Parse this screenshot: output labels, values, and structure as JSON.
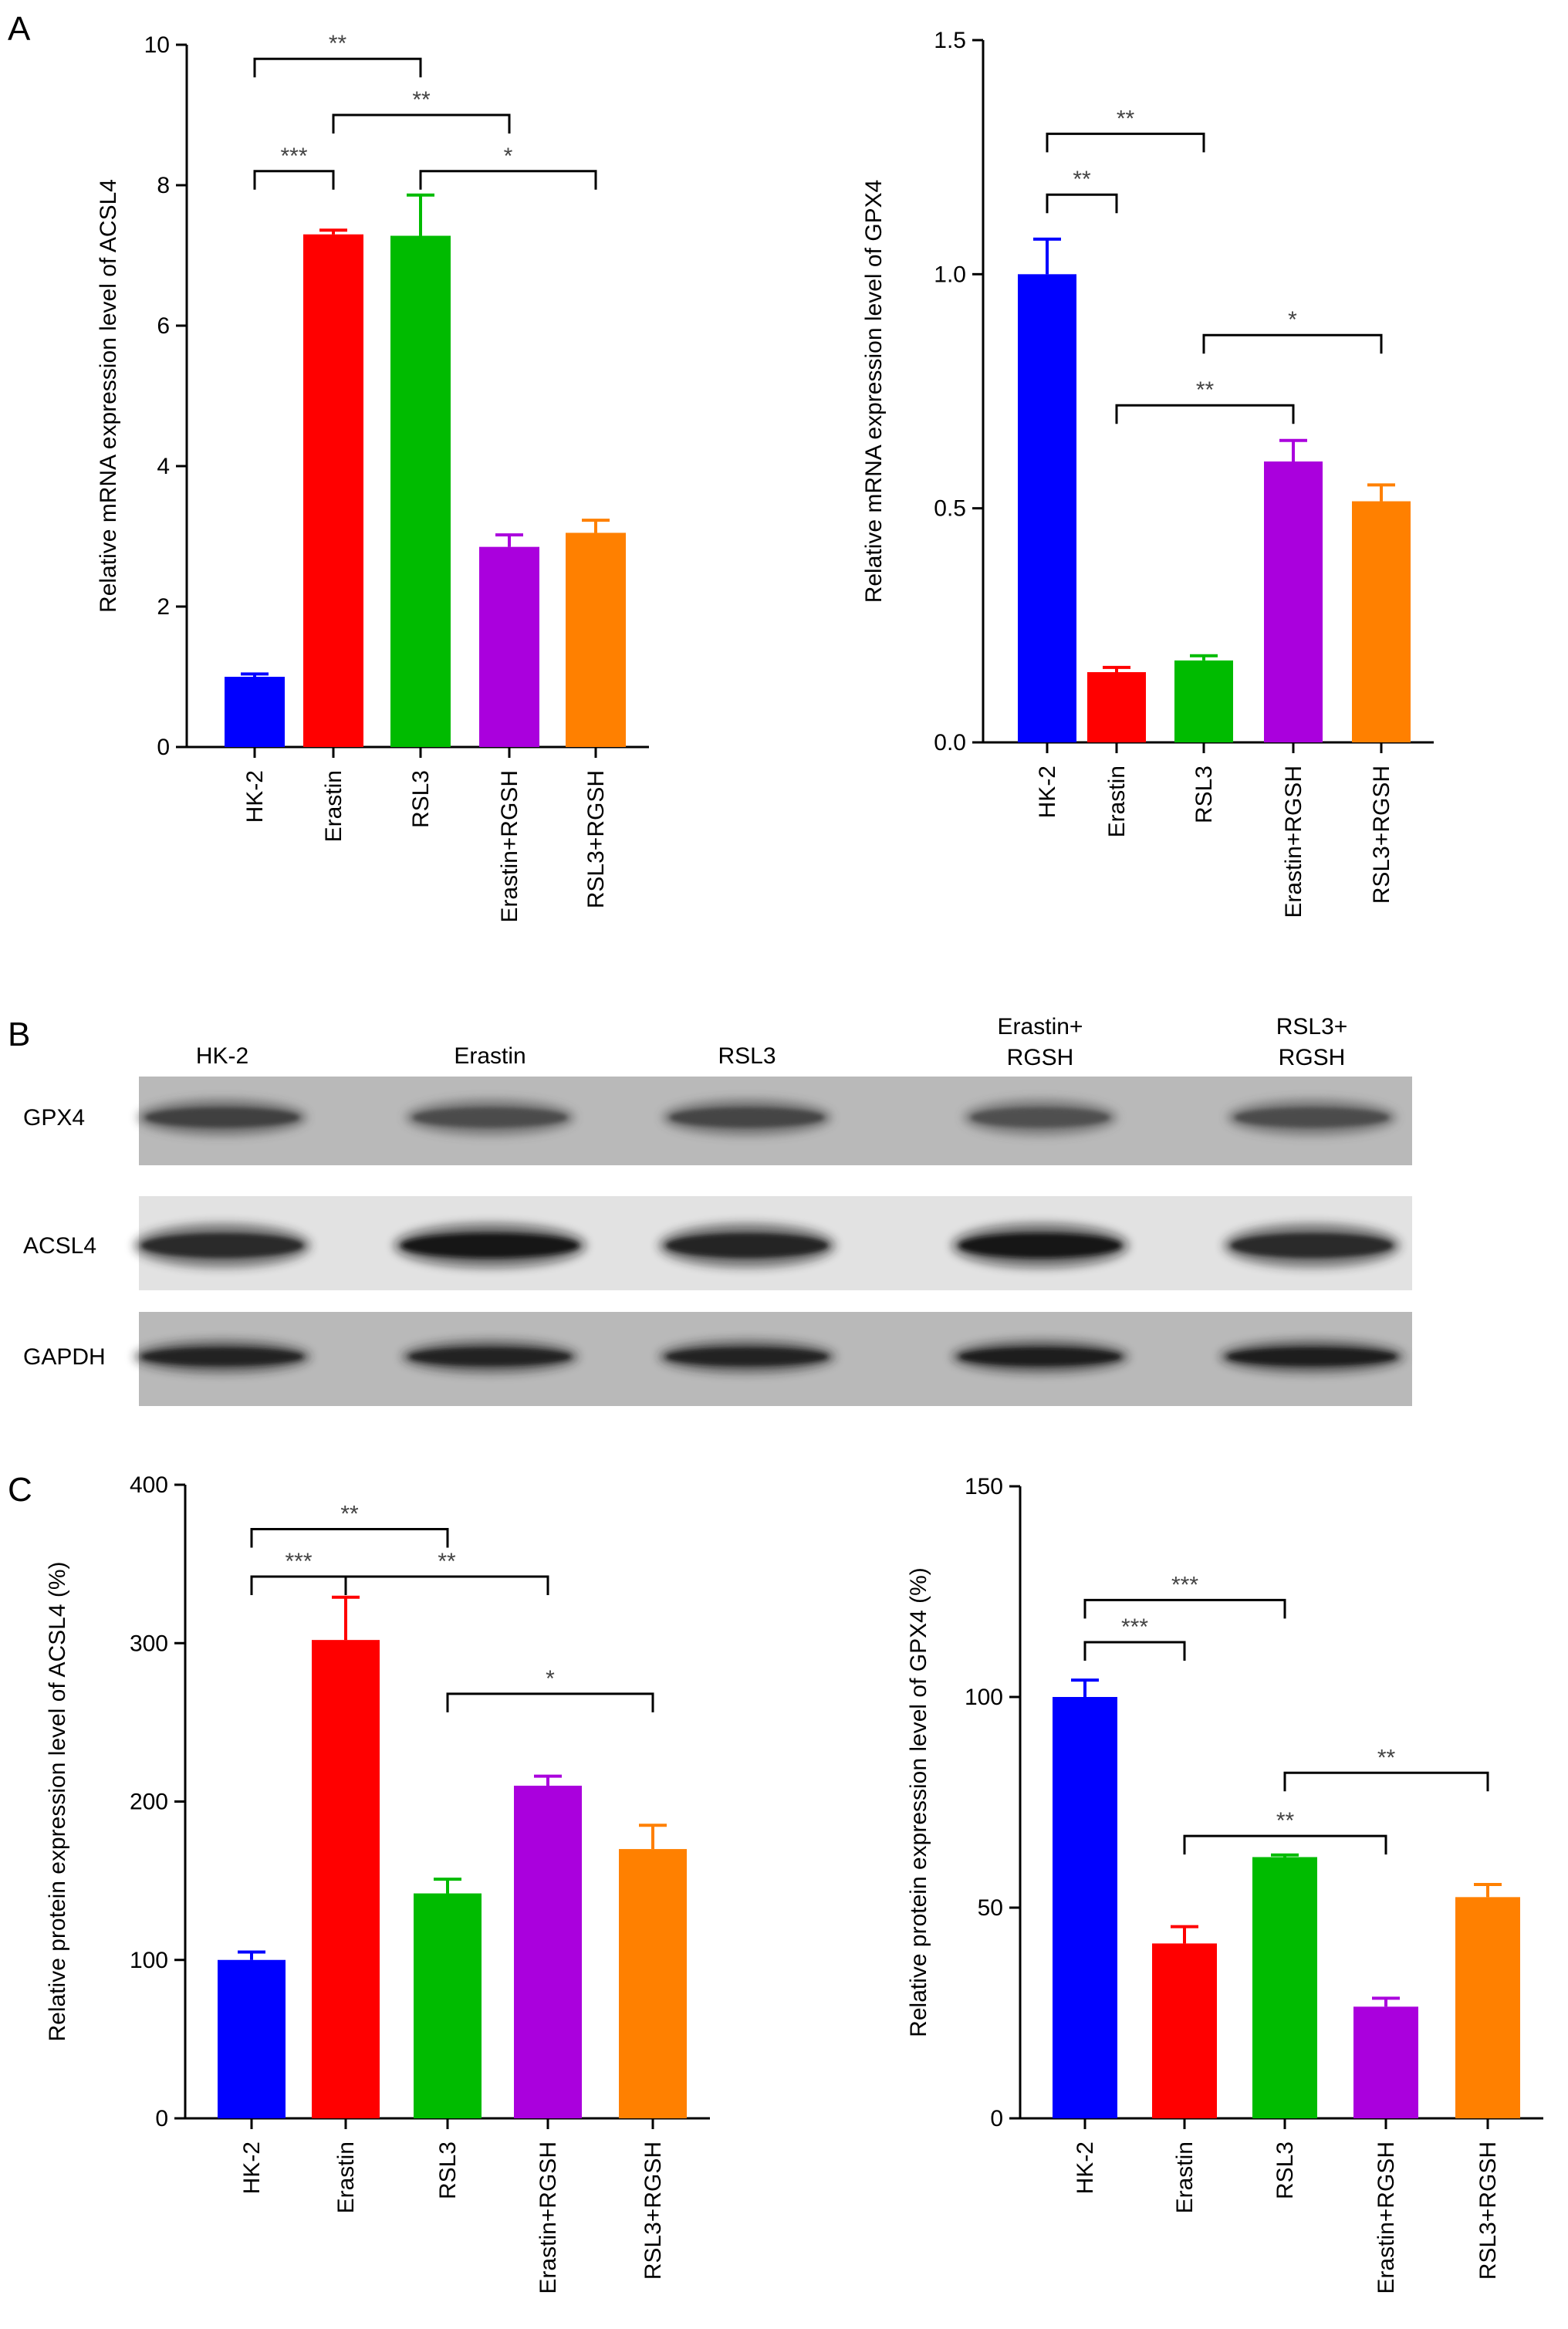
{
  "panels": {
    "A": "A",
    "B": "B",
    "C": "C"
  },
  "chart_data": [
    {
      "id": "A1",
      "type": "bar",
      "categories": [
        "HK-2",
        "Erastin",
        "RSL3",
        "Erastin+RGSH",
        "RSL3+RGSH"
      ],
      "values": [
        1.0,
        7.3,
        7.28,
        2.85,
        3.05
      ],
      "errors": [
        0.04,
        0.06,
        0.58,
        0.17,
        0.18
      ],
      "colors": [
        "#0000ff",
        "#ff0000",
        "#00bb00",
        "#aa00dd",
        "#ff8000"
      ],
      "ylabel": "Relative mRNA expression level of ACSL4",
      "ylim": [
        0,
        10
      ],
      "yticks": [
        0,
        2,
        4,
        6,
        8,
        10
      ],
      "significance": [
        {
          "from": 0,
          "to": 2,
          "label": "**",
          "level": 9.8
        },
        {
          "from": 1,
          "to": 3,
          "label": "**",
          "level": 9.0
        },
        {
          "from": 0,
          "to": 1,
          "label": "***",
          "level": 8.2
        },
        {
          "from": 2,
          "to": 4,
          "label": "*",
          "level": 8.2
        }
      ]
    },
    {
      "id": "A2",
      "type": "bar",
      "categories": [
        "HK-2",
        "Erastin",
        "RSL3",
        "Erastin+RGSH",
        "RSL3+RGSH"
      ],
      "values": [
        1.0,
        0.15,
        0.175,
        0.6,
        0.515
      ],
      "errors": [
        0.075,
        0.01,
        0.01,
        0.045,
        0.035
      ],
      "colors": [
        "#0000ff",
        "#ff0000",
        "#00bb00",
        "#aa00dd",
        "#ff8000"
      ],
      "ylabel": "Relative mRNA expression level of GPX4",
      "ylim": [
        0,
        1.5
      ],
      "yticks": [
        "0.0",
        "0.5",
        "1.0",
        "1.5"
      ],
      "significance": [
        {
          "from": 0,
          "to": 2,
          "label": "**",
          "level": 1.3
        },
        {
          "from": 0,
          "to": 1,
          "label": "**",
          "level": 1.17
        },
        {
          "from": 2,
          "to": 4,
          "label": "*",
          "level": 0.87
        },
        {
          "from": 1,
          "to": 3,
          "label": "**",
          "level": 0.72
        }
      ]
    },
    {
      "id": "C1",
      "type": "bar",
      "categories": [
        "HK-2",
        "Erastin",
        "RSL3",
        "Erastin+RGSH",
        "RSL3+RGSH"
      ],
      "values": [
        100,
        302,
        142,
        210,
        170
      ],
      "errors": [
        5,
        27,
        9,
        6,
        15
      ],
      "colors": [
        "#0000ff",
        "#ff0000",
        "#00bb00",
        "#aa00dd",
        "#ff8000"
      ],
      "ylabel": "Relative protein expression level of ACSL4 (%)",
      "ylim": [
        0,
        400
      ],
      "yticks": [
        0,
        100,
        200,
        300,
        400
      ],
      "significance": [
        {
          "from": 0,
          "to": 2,
          "label": "**",
          "level": 372
        },
        {
          "from": 0,
          "to": 1,
          "label": "***",
          "level": 342
        },
        {
          "from": 1,
          "to": 3,
          "label": "**",
          "level": 342,
          "fromMid": true
        },
        {
          "from": 2,
          "to": 4,
          "label": "*",
          "level": 268
        }
      ]
    },
    {
      "id": "C2",
      "type": "bar",
      "categories": [
        "HK-2",
        "Erastin",
        "RSL3",
        "Erastin+RGSH",
        "RSL3+RGSH"
      ],
      "values": [
        100,
        41.5,
        62,
        26.5,
        52.5
      ],
      "errors": [
        4,
        4,
        0.5,
        2,
        3
      ],
      "colors": [
        "#0000ff",
        "#ff0000",
        "#00bb00",
        "#aa00dd",
        "#ff8000"
      ],
      "ylabel": "Relative protein expression level of GPX4 (%)",
      "ylim": [
        0,
        150
      ],
      "yticks": [
        0,
        50,
        100,
        150
      ],
      "significance": [
        {
          "from": 0,
          "to": 2,
          "label": "***",
          "level": 123
        },
        {
          "from": 0,
          "to": 1,
          "label": "***",
          "level": 113
        },
        {
          "from": 2,
          "to": 4,
          "label": "**",
          "level": 82
        },
        {
          "from": 1,
          "to": 3,
          "label": "**",
          "level": 67
        }
      ]
    }
  ],
  "blot": {
    "lanes": [
      [
        "HK-2"
      ],
      [
        "Erastin"
      ],
      [
        "RSL3"
      ],
      [
        "Erastin+",
        "RGSH"
      ],
      [
        "RSL3+",
        "RGSH"
      ]
    ],
    "rows": [
      "GPX4",
      "ACSL4",
      "GAPDH"
    ]
  }
}
